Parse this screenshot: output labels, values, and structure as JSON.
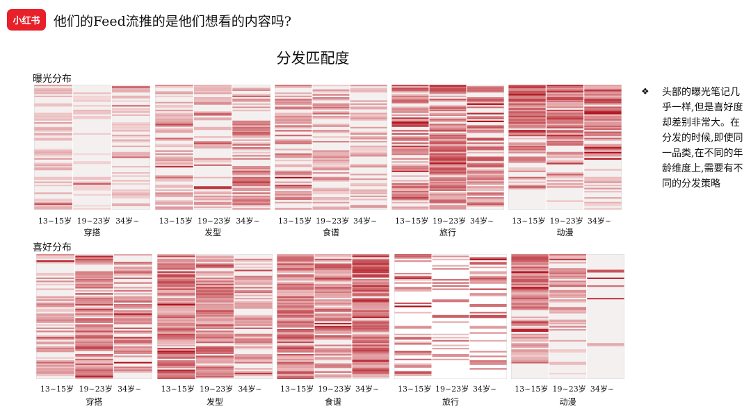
{
  "header": {
    "logo_text": "小红书",
    "title": "他们的Feed流推的是他们想看的内容吗?"
  },
  "chart_title": "分发匹配度",
  "sections": {
    "exposure_label": "曝光分布",
    "preference_label": "喜好分布"
  },
  "side_note": {
    "bullet": "❖",
    "text": "头部的曝光笔记几乎一样,但是喜好度却差别非常大。在分发的时候,即使同一品类,在不同的年龄维度上,需要有不同的分发策略"
  },
  "colors": {
    "accent": "#e8202a",
    "heat_dark": "#b3121c",
    "heat_light": "#f6d6d6",
    "bg": "#ffffff"
  },
  "chart_data": {
    "type": "heatmap",
    "age_groups": [
      "13~15岁",
      "19~23岁",
      "34岁~"
    ],
    "categories": [
      "穿搭",
      "发型",
      "食谱",
      "旅行",
      "动漫"
    ],
    "rows": [
      {
        "name": "exposure",
        "label": "曝光分布",
        "panels": [
          {
            "category": "穿搭",
            "intensity": [
              0.25,
              0.15,
              0.2
            ],
            "density": [
              0.55,
              0.4,
              0.5
            ],
            "pattern": "uniform"
          },
          {
            "category": "发型",
            "intensity": [
              0.3,
              0.3,
              0.45
            ],
            "density": [
              0.6,
              0.5,
              0.6
            ],
            "pattern": "uniform"
          },
          {
            "category": "食谱",
            "intensity": [
              0.45,
              0.35,
              0.3
            ],
            "density": [
              0.65,
              0.55,
              0.5
            ],
            "pattern": "uniform"
          },
          {
            "category": "旅行",
            "intensity": [
              0.6,
              0.6,
              0.5
            ],
            "density": [
              0.7,
              0.75,
              0.65
            ],
            "pattern": "uniform"
          },
          {
            "category": "动漫",
            "intensity": [
              0.5,
              0.45,
              0.45
            ],
            "density": [
              0.75,
              0.7,
              0.7
            ],
            "pattern": "head"
          }
        ]
      },
      {
        "name": "preference",
        "label": "喜好分布",
        "panels": [
          {
            "category": "穿搭",
            "intensity": [
              0.35,
              0.55,
              0.45
            ],
            "density": [
              0.6,
              0.85,
              0.6
            ],
            "pattern": "uniform"
          },
          {
            "category": "发型",
            "intensity": [
              0.55,
              0.55,
              0.4
            ],
            "density": [
              0.85,
              0.85,
              0.6
            ],
            "pattern": "uniform"
          },
          {
            "category": "食谱",
            "intensity": [
              0.55,
              0.5,
              0.65
            ],
            "density": [
              0.85,
              0.8,
              0.9
            ],
            "pattern": "uniform"
          },
          {
            "category": "旅行",
            "intensity": [
              0.5,
              0.45,
              0.55
            ],
            "density": [
              0.2,
              0.25,
              0.3
            ],
            "pattern": "sparse"
          },
          {
            "category": "动漫",
            "intensity": [
              0.45,
              0.4,
              0.5
            ],
            "density": [
              0.8,
              0.5,
              0.1
            ],
            "pattern": "head"
          }
        ]
      }
    ],
    "xlabel": "",
    "ylabel": "",
    "legend": "none",
    "grid": false
  }
}
